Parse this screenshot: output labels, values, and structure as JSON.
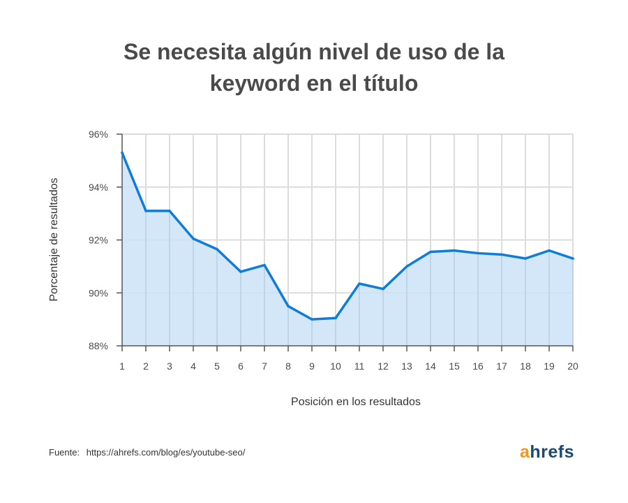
{
  "title_lines": [
    "Se necesita algún nivel de uso de la",
    "keyword en el título"
  ],
  "source": {
    "label": "Fuente:",
    "url": "https://ahrefs.com/blog/es/youtube-seo/"
  },
  "logo": {
    "first": "a",
    "rest": "hrefs"
  },
  "colors": {
    "line": "#0f7cd8",
    "fill": "#cde3f7",
    "grid": "#dcdcdc",
    "axis": "#555555",
    "text": "#4a4a4a"
  },
  "chart_data": {
    "type": "area",
    "title": "Se necesita algún nivel de uso de la keyword en el título",
    "xlabel": "Posición en los resultados",
    "ylabel": "Porcentaje de resultados",
    "x": [
      1,
      2,
      3,
      4,
      5,
      6,
      7,
      8,
      9,
      10,
      11,
      12,
      13,
      14,
      15,
      16,
      17,
      18,
      19,
      20
    ],
    "x_tick_labels": [
      "1",
      "2",
      "3",
      "4",
      "5",
      "6",
      "7",
      "8",
      "9",
      "10",
      "11",
      "12",
      "13",
      "14",
      "15",
      "16",
      "17",
      "18",
      "19",
      "20"
    ],
    "series": [
      {
        "values": [
          95.3,
          93.1,
          93.1,
          92.05,
          91.65,
          90.8,
          91.05,
          89.5,
          89.0,
          89.05,
          90.35,
          90.15,
          91.0,
          91.55,
          91.6,
          91.5,
          91.45,
          91.3,
          91.6,
          91.3
        ]
      }
    ],
    "ylim": [
      88,
      96
    ],
    "y_ticks": [
      88,
      90,
      92,
      94,
      96
    ],
    "y_tick_labels": [
      "88%",
      "90%",
      "92%",
      "94%",
      "96%"
    ],
    "grid": true,
    "legend": false
  }
}
